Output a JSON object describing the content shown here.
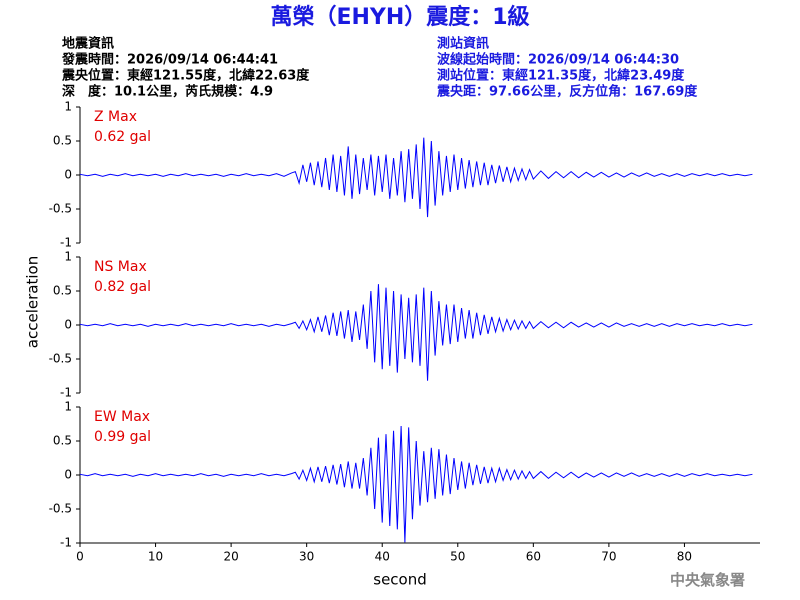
{
  "chart_data": {
    "type": "line",
    "title": "萬榮（EHYH）震度：1級",
    "info_left": [
      "地震資訊",
      "發震時間：2026/09/14 06:44:41",
      "震央位置：東經121.55度，北緯22.63度",
      "深　度：10.1公里，芮氏規模：4.9"
    ],
    "info_right": [
      "測站資訊",
      "波線起始時間：2026/09/14 06:44:30",
      "測站位置：東經121.35度，北緯23.49度",
      "震央距：97.66公里，反方位角：167.69度"
    ],
    "y_label": "acceleration",
    "x_label": "second",
    "xlim": [
      0,
      90
    ],
    "xticks": [
      0,
      10,
      20,
      30,
      40,
      50,
      60,
      70,
      80
    ],
    "ylim": [
      -1,
      1
    ],
    "yticks": [
      -1,
      -0.5,
      0,
      0.5,
      1
    ],
    "x": [
      0,
      1,
      2,
      3,
      4,
      5,
      6,
      7,
      8,
      9,
      10,
      11,
      12,
      13,
      14,
      15,
      16,
      17,
      18,
      19,
      20,
      21,
      22,
      23,
      24,
      25,
      26,
      27,
      28,
      28.5,
      29,
      29.5,
      30,
      30.5,
      31,
      31.5,
      32,
      32.5,
      33,
      33.5,
      34,
      34.5,
      35,
      35.5,
      36,
      36.5,
      37,
      37.5,
      38,
      38.5,
      39,
      39.5,
      40,
      40.5,
      41,
      41.5,
      42,
      42.5,
      43,
      43.5,
      44,
      44.5,
      45,
      45.5,
      46,
      46.5,
      47,
      47.5,
      48,
      48.5,
      49,
      49.5,
      50,
      50.5,
      51,
      51.5,
      52,
      52.5,
      53,
      53.5,
      54,
      54.5,
      55,
      55.5,
      56,
      56.5,
      57,
      57.5,
      58,
      58.5,
      59,
      59.5,
      60,
      61,
      62,
      63,
      64,
      65,
      66,
      67,
      68,
      69,
      70,
      71,
      72,
      73,
      74,
      75,
      76,
      77,
      78,
      79,
      80,
      81,
      82,
      83,
      84,
      85,
      86,
      87,
      88,
      89
    ],
    "series": [
      {
        "name": "Z Max",
        "max_label": "0.62 gal",
        "color": "#0000ff",
        "values": [
          0.01,
          -0.01,
          0.01,
          -0.02,
          0.01,
          -0.01,
          0.02,
          -0.01,
          0.01,
          -0.01,
          0.01,
          -0.02,
          0.01,
          -0.01,
          0.02,
          -0.01,
          0.01,
          -0.01,
          0.01,
          -0.02,
          0.01,
          -0.01,
          0.02,
          -0.01,
          0.01,
          -0.01,
          0.02,
          -0.02,
          0.03,
          0.05,
          -0.12,
          0.15,
          -0.1,
          0.18,
          -0.15,
          0.2,
          -0.18,
          0.25,
          -0.22,
          0.3,
          -0.25,
          0.28,
          -0.3,
          0.42,
          -0.35,
          0.3,
          -0.28,
          0.25,
          -0.22,
          0.3,
          -0.3,
          0.28,
          -0.25,
          0.3,
          -0.35,
          0.25,
          -0.3,
          0.35,
          -0.4,
          0.38,
          -0.35,
          0.45,
          -0.5,
          0.55,
          -0.62,
          0.5,
          -0.45,
          0.35,
          -0.3,
          0.28,
          -0.25,
          0.3,
          -0.22,
          0.25,
          -0.2,
          0.22,
          -0.18,
          0.2,
          -0.15,
          0.18,
          -0.15,
          0.15,
          -0.12,
          0.14,
          -0.1,
          0.12,
          -0.1,
          0.1,
          -0.08,
          0.09,
          -0.07,
          0.08,
          -0.06,
          0.06,
          -0.05,
          0.05,
          -0.04,
          0.05,
          -0.04,
          0.04,
          -0.03,
          0.04,
          -0.03,
          0.03,
          -0.03,
          0.03,
          -0.02,
          0.03,
          -0.02,
          0.02,
          -0.02,
          0.02,
          -0.02,
          0.02,
          -0.01,
          0.02,
          -0.01,
          0.02,
          -0.01,
          0.01,
          -0.01,
          0.01
        ]
      },
      {
        "name": "NS Max",
        "max_label": "0.82 gal",
        "color": "#0000ff",
        "values": [
          0.01,
          -0.01,
          0.01,
          -0.01,
          0.02,
          -0.01,
          0.01,
          -0.01,
          0.01,
          -0.02,
          0.01,
          -0.01,
          0.01,
          -0.01,
          0.02,
          -0.01,
          0.01,
          -0.01,
          0.01,
          -0.01,
          0.02,
          -0.01,
          0.01,
          -0.01,
          0.01,
          -0.02,
          0.01,
          -0.01,
          0.02,
          0.04,
          -0.05,
          0.06,
          -0.07,
          0.08,
          -0.1,
          0.12,
          -0.1,
          0.14,
          -0.15,
          0.18,
          -0.16,
          0.2,
          -0.2,
          0.22,
          -0.25,
          0.2,
          -0.22,
          0.3,
          -0.35,
          0.5,
          -0.55,
          0.6,
          -0.65,
          0.55,
          -0.6,
          0.5,
          -0.7,
          0.45,
          -0.5,
          0.4,
          -0.55,
          0.45,
          -0.6,
          0.55,
          -0.82,
          0.5,
          -0.45,
          0.35,
          -0.3,
          0.3,
          -0.28,
          0.3,
          -0.25,
          0.25,
          -0.2,
          0.22,
          -0.2,
          0.18,
          -0.15,
          0.15,
          -0.13,
          0.12,
          -0.1,
          0.1,
          -0.09,
          0.08,
          -0.07,
          0.07,
          -0.06,
          0.06,
          -0.05,
          0.05,
          -0.05,
          0.05,
          -0.04,
          0.04,
          -0.04,
          0.04,
          -0.03,
          0.03,
          -0.03,
          0.03,
          -0.03,
          0.03,
          -0.02,
          0.02,
          -0.02,
          0.02,
          -0.02,
          0.02,
          -0.02,
          0.02,
          -0.01,
          0.02,
          -0.01,
          0.01,
          -0.01,
          0.02,
          -0.01,
          0.01,
          -0.01,
          0.01
        ]
      },
      {
        "name": "EW Max",
        "max_label": "0.99 gal",
        "color": "#0000ff",
        "values": [
          0.01,
          -0.01,
          0.02,
          -0.01,
          0.01,
          -0.01,
          0.01,
          -0.02,
          0.01,
          -0.01,
          0.02,
          -0.01,
          0.01,
          -0.01,
          0.01,
          -0.01,
          0.02,
          -0.01,
          0.01,
          -0.02,
          0.01,
          -0.01,
          0.01,
          -0.01,
          0.02,
          -0.01,
          0.01,
          -0.01,
          0.02,
          0.04,
          -0.06,
          0.07,
          -0.08,
          0.1,
          -0.1,
          0.12,
          -0.1,
          0.13,
          -0.12,
          0.15,
          -0.14,
          0.16,
          -0.18,
          0.2,
          -0.2,
          0.18,
          -0.2,
          0.25,
          -0.3,
          0.4,
          -0.5,
          0.55,
          -0.7,
          0.6,
          -0.75,
          0.65,
          -0.8,
          0.72,
          -0.99,
          0.7,
          -0.65,
          0.5,
          -0.45,
          0.35,
          -0.4,
          0.4,
          -0.35,
          0.38,
          -0.3,
          0.3,
          -0.28,
          0.25,
          -0.22,
          0.2,
          -0.2,
          0.18,
          -0.15,
          0.15,
          -0.13,
          0.12,
          -0.12,
          0.1,
          -0.1,
          0.1,
          -0.08,
          0.08,
          -0.07,
          0.07,
          -0.06,
          0.06,
          -0.05,
          0.05,
          -0.05,
          0.05,
          -0.05,
          0.04,
          -0.04,
          0.04,
          -0.04,
          0.03,
          -0.03,
          0.03,
          -0.03,
          0.03,
          -0.02,
          0.03,
          -0.02,
          0.02,
          -0.02,
          0.02,
          -0.02,
          0.02,
          -0.02,
          0.02,
          -0.01,
          0.02,
          -0.01,
          0.01,
          -0.01,
          0.01,
          -0.01,
          0.01
        ]
      }
    ],
    "footer": "中央氣象署"
  }
}
